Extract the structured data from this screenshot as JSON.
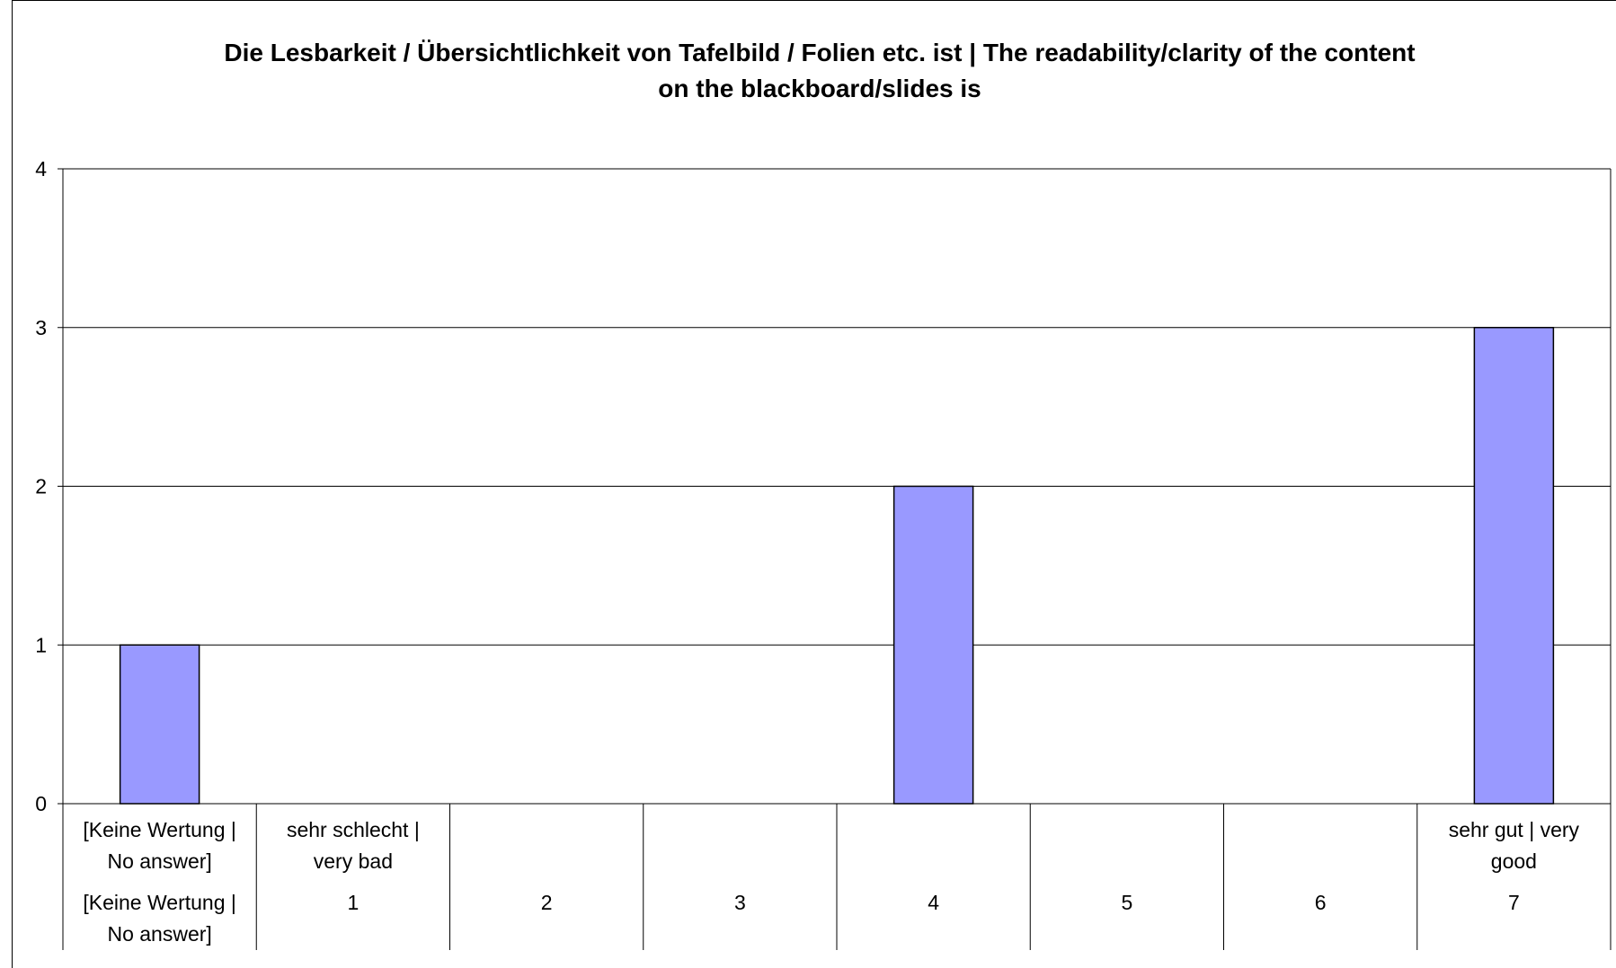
{
  "chart_data": {
    "type": "bar",
    "title_lines": [
      "Die Lesbarkeit / Übersichtlichkeit von Tafelbild / Folien etc. ist | The readability/clarity of the content",
      "on the blackboard/slides is"
    ],
    "categories": [
      {
        "scale_label": [
          "[Keine Wertung |",
          "No answer]"
        ],
        "value_label": [
          "[Keine Wertung |",
          "No answer]"
        ]
      },
      {
        "scale_label": [
          "sehr schlecht |",
          "very bad"
        ],
        "value_label": [
          "1"
        ]
      },
      {
        "scale_label": [],
        "value_label": [
          "2"
        ]
      },
      {
        "scale_label": [],
        "value_label": [
          "3"
        ]
      },
      {
        "scale_label": [],
        "value_label": [
          "4"
        ]
      },
      {
        "scale_label": [],
        "value_label": [
          "5"
        ]
      },
      {
        "scale_label": [],
        "value_label": [
          "6"
        ]
      },
      {
        "scale_label": [
          "sehr gut | very",
          "good"
        ],
        "value_label": [
          "7"
        ]
      }
    ],
    "values": [
      1,
      0,
      0,
      0,
      2,
      0,
      0,
      3
    ],
    "ylim": [
      0,
      4
    ],
    "yticks": [
      "0",
      "1",
      "2",
      "3",
      "4"
    ],
    "grid": true,
    "bar_color": "#9999ff",
    "bar_outline": "#000000",
    "xlabel": "",
    "ylabel": ""
  }
}
